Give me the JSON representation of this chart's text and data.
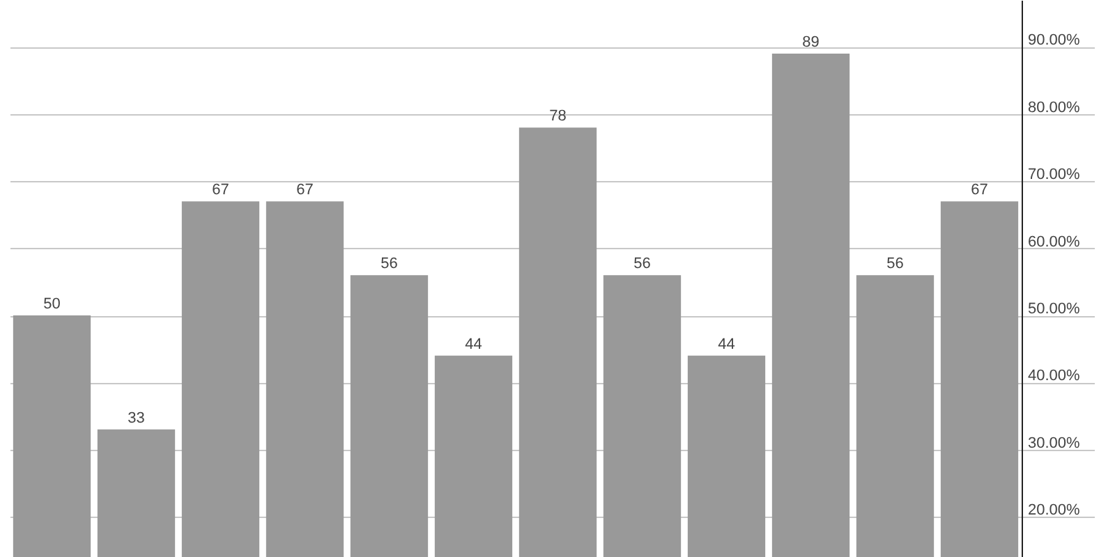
{
  "chart_data": {
    "type": "bar",
    "categories": [
      null,
      null,
      null,
      null,
      null,
      null,
      null,
      null,
      null,
      null,
      null,
      null
    ],
    "values": [
      50,
      33,
      67,
      67,
      56,
      44,
      78,
      56,
      44,
      89,
      56,
      67
    ],
    "color": "#999999",
    "ylim": [
      14,
      97
    ],
    "yticks": [
      {
        "value": 20,
        "label": "20.00%"
      },
      {
        "value": 30,
        "label": "30.00%"
      },
      {
        "value": 40,
        "label": "40.00%"
      },
      {
        "value": 50,
        "label": "50.00%"
      },
      {
        "value": 60,
        "label": "60.00%"
      },
      {
        "value": 70,
        "label": "70.00%"
      },
      {
        "value": 80,
        "label": "80.00%"
      },
      {
        "value": 90,
        "label": "90.00%"
      }
    ],
    "grid": "y",
    "data_labels": true
  }
}
